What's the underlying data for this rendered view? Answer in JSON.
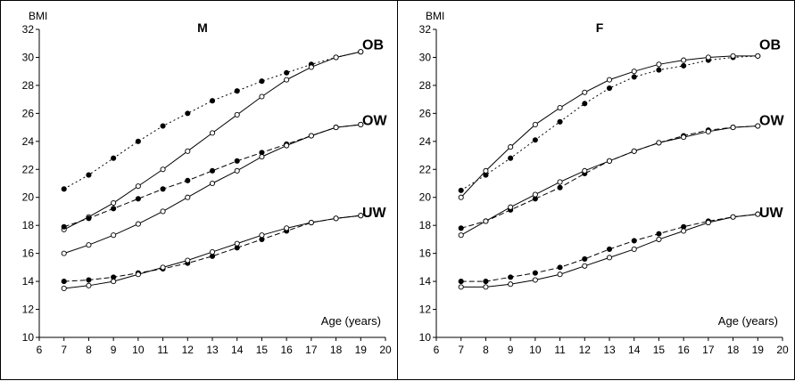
{
  "chart_data": [
    {
      "type": "line",
      "title": "M",
      "ylabel": "BMI",
      "xlabel": "Age (years)",
      "xlim": [
        6,
        20
      ],
      "ylim": [
        10,
        32
      ],
      "x_ticks": [
        6,
        7,
        8,
        9,
        10,
        11,
        12,
        13,
        14,
        15,
        16,
        17,
        18,
        19,
        20
      ],
      "y_ticks": [
        10,
        12,
        14,
        16,
        18,
        20,
        22,
        24,
        26,
        28,
        30,
        32
      ],
      "grid": false,
      "curve_labels": [
        {
          "text": "OB",
          "y": 30.7
        },
        {
          "text": "OW",
          "y": 25.3
        },
        {
          "text": "UW",
          "y": 18.7
        }
      ],
      "series": [
        {
          "style": "dotted",
          "marker": "filled",
          "x": [
            7,
            8,
            9,
            10,
            11,
            12,
            13,
            14,
            15,
            16,
            17,
            18,
            19
          ],
          "values": [
            20.6,
            21.6,
            22.8,
            24.0,
            25.1,
            26.0,
            26.9,
            27.6,
            28.3,
            28.9,
            29.5,
            30.0,
            30.4
          ]
        },
        {
          "style": "solid",
          "marker": "open",
          "x": [
            7,
            8,
            9,
            10,
            11,
            12,
            13,
            14,
            15,
            16,
            17,
            18,
            19
          ],
          "values": [
            17.7,
            18.6,
            19.6,
            20.8,
            22.0,
            23.3,
            24.6,
            25.9,
            27.2,
            28.4,
            29.3,
            30.0,
            30.4
          ]
        },
        {
          "style": "dashed",
          "marker": "filled",
          "x": [
            7,
            8,
            9,
            10,
            11,
            12,
            13,
            14,
            15,
            16,
            17,
            18,
            19
          ],
          "values": [
            17.9,
            18.5,
            19.2,
            19.9,
            20.6,
            21.2,
            21.9,
            22.6,
            23.2,
            23.8,
            24.4,
            25.0,
            25.2
          ]
        },
        {
          "style": "solid",
          "marker": "open",
          "x": [
            7,
            8,
            9,
            10,
            11,
            12,
            13,
            14,
            15,
            16,
            17,
            18,
            19
          ],
          "values": [
            16.0,
            16.6,
            17.3,
            18.1,
            19.0,
            20.0,
            21.0,
            21.9,
            22.9,
            23.7,
            24.4,
            25.0,
            25.2
          ]
        },
        {
          "style": "dashed",
          "marker": "filled",
          "x": [
            7,
            8,
            9,
            10,
            11,
            12,
            13,
            14,
            15,
            16,
            17,
            18,
            19
          ],
          "values": [
            14.0,
            14.1,
            14.3,
            14.6,
            14.9,
            15.3,
            15.8,
            16.4,
            17.0,
            17.6,
            18.2,
            18.5,
            18.7
          ]
        },
        {
          "style": "solid",
          "marker": "open",
          "x": [
            7,
            8,
            9,
            10,
            11,
            12,
            13,
            14,
            15,
            16,
            17,
            18,
            19
          ],
          "values": [
            13.5,
            13.7,
            14.0,
            14.5,
            15.0,
            15.5,
            16.1,
            16.7,
            17.3,
            17.8,
            18.2,
            18.5,
            18.7
          ]
        }
      ]
    },
    {
      "type": "line",
      "title": "F",
      "ylabel": "BMI",
      "xlabel": "Age (years)",
      "xlim": [
        6,
        20
      ],
      "ylim": [
        10,
        32
      ],
      "x_ticks": [
        6,
        7,
        8,
        9,
        10,
        11,
        12,
        13,
        14,
        15,
        16,
        17,
        18,
        19,
        20
      ],
      "y_ticks": [
        10,
        12,
        14,
        16,
        18,
        20,
        22,
        24,
        26,
        28,
        30,
        32
      ],
      "grid": false,
      "curve_labels": [
        {
          "text": "OB",
          "y": 30.7
        },
        {
          "text": "OW",
          "y": 25.3
        },
        {
          "text": "UW",
          "y": 18.7
        }
      ],
      "series": [
        {
          "style": "dotted",
          "marker": "filled",
          "x": [
            7,
            8,
            9,
            10,
            11,
            12,
            13,
            14,
            15,
            16,
            17,
            18,
            19
          ],
          "values": [
            20.5,
            21.6,
            22.8,
            24.1,
            25.4,
            26.7,
            27.8,
            28.6,
            29.1,
            29.4,
            29.8,
            30.0,
            30.1
          ]
        },
        {
          "style": "solid",
          "marker": "open",
          "x": [
            7,
            8,
            9,
            10,
            11,
            12,
            13,
            14,
            15,
            16,
            17,
            18,
            19
          ],
          "values": [
            20.0,
            21.9,
            23.6,
            25.2,
            26.4,
            27.5,
            28.4,
            29.0,
            29.5,
            29.8,
            30.0,
            30.1,
            30.1
          ]
        },
        {
          "style": "dashed",
          "marker": "filled",
          "x": [
            7,
            8,
            9,
            10,
            11,
            12,
            13,
            14,
            15,
            16,
            17,
            18,
            19
          ],
          "values": [
            17.8,
            18.3,
            19.1,
            19.9,
            20.7,
            21.7,
            22.6,
            23.3,
            23.9,
            24.4,
            24.8,
            25.0,
            25.1
          ]
        },
        {
          "style": "solid",
          "marker": "open",
          "x": [
            7,
            8,
            9,
            10,
            11,
            12,
            13,
            14,
            15,
            16,
            17,
            18,
            19
          ],
          "values": [
            17.3,
            18.3,
            19.3,
            20.2,
            21.1,
            21.9,
            22.6,
            23.3,
            23.9,
            24.3,
            24.7,
            25.0,
            25.1
          ]
        },
        {
          "style": "dashed",
          "marker": "filled",
          "x": [
            7,
            8,
            9,
            10,
            11,
            12,
            13,
            14,
            15,
            16,
            17,
            18,
            19
          ],
          "values": [
            14.0,
            14.0,
            14.3,
            14.6,
            15.0,
            15.6,
            16.3,
            16.9,
            17.4,
            17.9,
            18.3,
            18.6,
            18.8
          ]
        },
        {
          "style": "solid",
          "marker": "open",
          "x": [
            7,
            8,
            9,
            10,
            11,
            12,
            13,
            14,
            15,
            16,
            17,
            18,
            19
          ],
          "values": [
            13.6,
            13.6,
            13.8,
            14.1,
            14.5,
            15.1,
            15.7,
            16.3,
            17.0,
            17.6,
            18.2,
            18.6,
            18.8
          ]
        }
      ]
    }
  ]
}
